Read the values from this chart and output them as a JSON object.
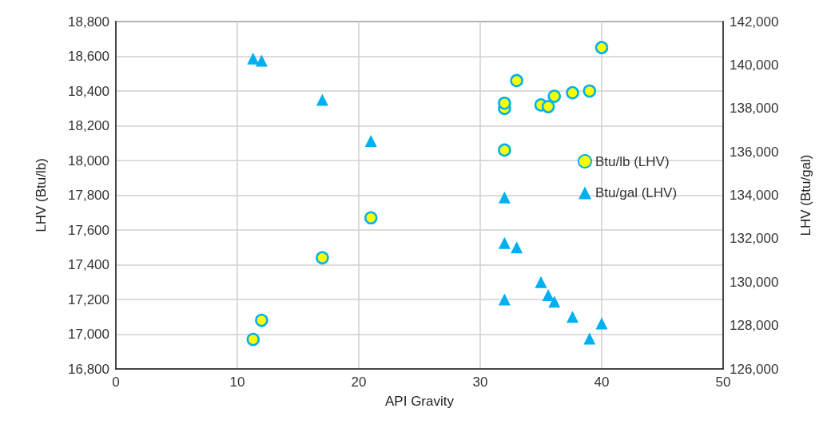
{
  "chart_data": {
    "type": "scatter",
    "xlabel": "API Gravity",
    "ylabel": "LHV (Btu/lb)",
    "y2label": "LHV (Btu/gal)",
    "x": [
      11.3,
      12.0,
      17.0,
      21.0,
      32.0,
      32.0,
      32.0,
      33.0,
      35.0,
      35.6,
      36.1,
      37.6,
      39.0,
      40.0
    ],
    "series": [
      {
        "name": "Btu/lb (LHV)",
        "color": "#ffff00",
        "marker": "circle",
        "values": [
          16970,
          17080,
          17440,
          17670,
          18060,
          18300,
          18330,
          18460,
          18320,
          18310,
          18370,
          18390,
          18400,
          18650
        ]
      },
      {
        "name": "Btu/gal (LHV)",
        "color": "#00b0f0",
        "marker": "triangle",
        "axis": "y2",
        "values": [
          140300,
          140200,
          138400,
          136500,
          133900,
          131800,
          129200,
          131600,
          130000,
          129400,
          129100,
          128400,
          127400,
          128100
        ]
      }
    ],
    "xlim": [
      0,
      50
    ],
    "xticks": [
      0,
      10,
      20,
      30,
      40,
      50
    ],
    "ylim": [
      16800,
      18800
    ],
    "yticks": [
      {
        "value": 16800,
        "label": "16,800"
      },
      {
        "value": 17000,
        "label": "17,000"
      },
      {
        "value": 17200,
        "label": "17,200"
      },
      {
        "value": 17400,
        "label": "17,400"
      },
      {
        "value": 17600,
        "label": "17,600"
      },
      {
        "value": 17800,
        "label": "17,800"
      },
      {
        "value": 18000,
        "label": "18,000"
      },
      {
        "value": 18200,
        "label": "18,200"
      },
      {
        "value": 18400,
        "label": "18,400"
      },
      {
        "value": 18600,
        "label": "18,600"
      },
      {
        "value": 18800,
        "label": "18,800"
      }
    ],
    "y2lim": [
      126000,
      142000
    ],
    "y2ticks": [
      {
        "value": 126000,
        "label": "126,000"
      },
      {
        "value": 128000,
        "label": "128,000"
      },
      {
        "value": 130000,
        "label": "130,000"
      },
      {
        "value": 132000,
        "label": "132,000"
      },
      {
        "value": 134000,
        "label": "134,000"
      },
      {
        "value": 136000,
        "label": "136,000"
      },
      {
        "value": 138000,
        "label": "138,000"
      },
      {
        "value": 140000,
        "label": "140,000"
      },
      {
        "value": 142000,
        "label": "142,000"
      }
    ],
    "grid": true,
    "legend": "right"
  }
}
